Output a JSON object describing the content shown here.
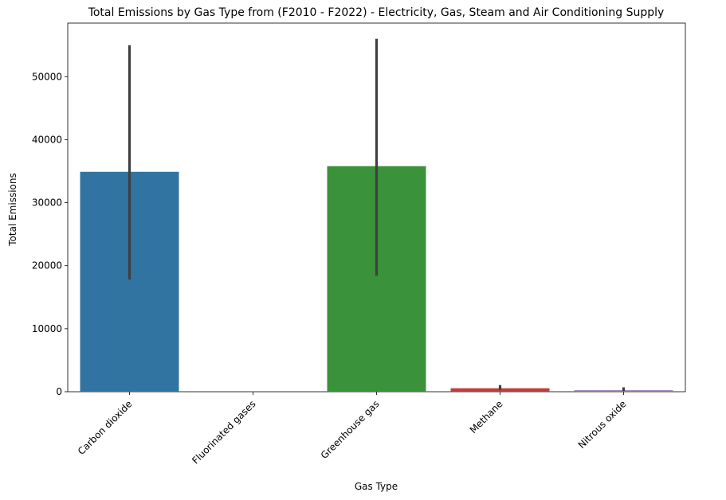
{
  "chart_data": {
    "type": "bar",
    "title": "Total Emissions by Gas Type from (F2010 - F2022) - Electricity, Gas, Steam and Air Conditioning Supply",
    "xlabel": "Gas Type",
    "ylabel": "Total Emissions",
    "categories": [
      "Carbon dioxide",
      "Fluorinated gases",
      "Greenhouse gas",
      "Methane",
      "Nitrous oxide"
    ],
    "values": [
      34900,
      0,
      35800,
      550,
      230
    ],
    "error_low": [
      17800,
      0,
      18400,
      300,
      100
    ],
    "error_high": [
      55000,
      0,
      56000,
      1050,
      700
    ],
    "colors": [
      "#3274a1",
      "#e1812c",
      "#3a923a",
      "#c03d3e",
      "#9372b2"
    ],
    "ylim": [
      0,
      58500
    ],
    "yticks": [
      0,
      10000,
      20000,
      30000,
      40000,
      50000
    ],
    "grid": false,
    "legend": "none"
  }
}
